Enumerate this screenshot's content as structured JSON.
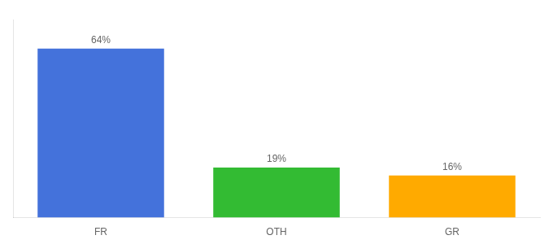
{
  "chart_data": {
    "type": "bar",
    "categories": [
      "FR",
      "OTH",
      "GR"
    ],
    "values": [
      64,
      19,
      16
    ],
    "value_labels": [
      "64%",
      "19%",
      "16%"
    ],
    "colors": [
      "#4472db",
      "#33bb33",
      "#ffaa00"
    ],
    "ylim": [
      0,
      75
    ],
    "grid": false,
    "data_labels": true,
    "tick_labels": "x"
  }
}
